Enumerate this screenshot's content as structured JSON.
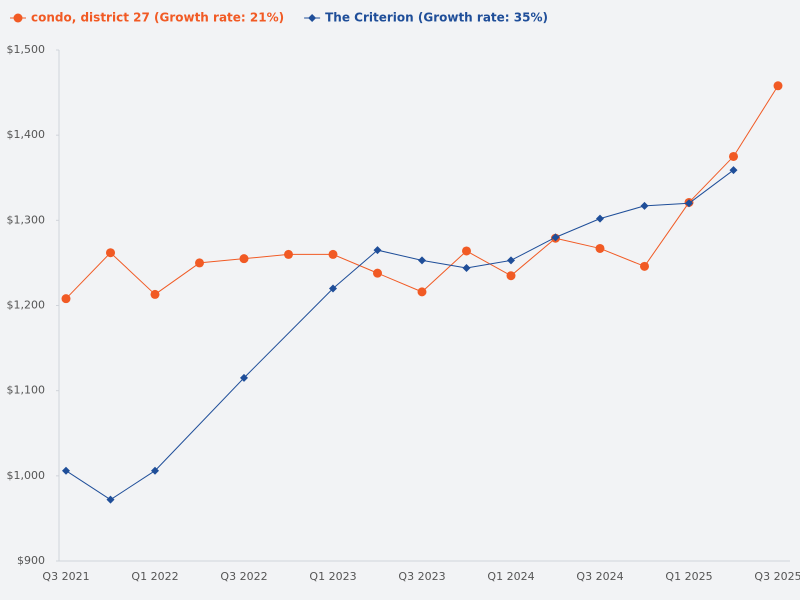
{
  "chart_data": {
    "type": "line",
    "categories": [
      "Q3 2021",
      null,
      "Q1 2022",
      null,
      "Q3 2022",
      null,
      "Q1 2023",
      null,
      "Q3 2023",
      null,
      "Q1 2024",
      null,
      "Q3 2024",
      null,
      "Q1 2025",
      null,
      "Q3 2025"
    ],
    "series": [
      {
        "name": "condo, district 27 (Growth rate: 21%)",
        "color": "#f15a24",
        "marker": "circle",
        "values": [
          1208,
          1262,
          1213,
          1250,
          1255,
          1260,
          1260,
          1238,
          1216,
          1264,
          1235,
          1279,
          1267,
          1246,
          1321,
          1375,
          1458
        ]
      },
      {
        "name": "The Criterion (Growth rate: 35%)",
        "color": "#1f4e99",
        "marker": "diamond",
        "values": [
          1006,
          972,
          1006,
          null,
          1115,
          null,
          1220,
          1265,
          1253,
          1244,
          1253,
          1280,
          1302,
          1317,
          1320,
          1359,
          null
        ]
      }
    ],
    "ylim": [
      900,
      1500
    ],
    "yticks": [
      {
        "value": 900,
        "label": "$900"
      },
      {
        "value": 1000,
        "label": "$1,000"
      },
      {
        "value": 1100,
        "label": "$1,100"
      },
      {
        "value": 1200,
        "label": "$1,200"
      },
      {
        "value": 1300,
        "label": "$1,300"
      },
      {
        "value": 1400,
        "label": "$1,400"
      },
      {
        "value": 1500,
        "label": "$1,500"
      }
    ],
    "grid": false,
    "legend": "top-left"
  }
}
